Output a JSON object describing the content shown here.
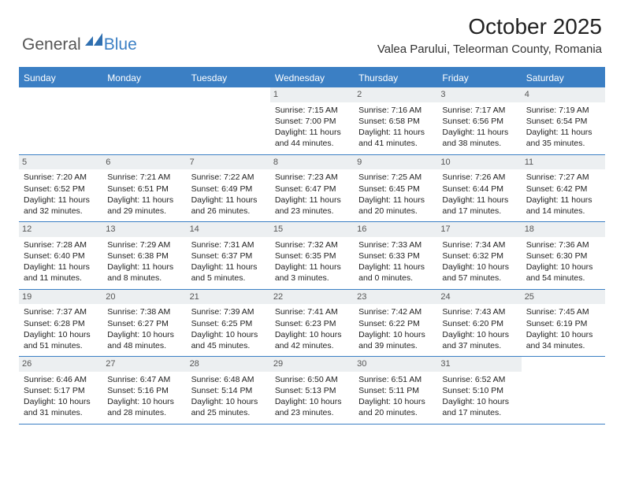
{
  "logo": {
    "part1": "General",
    "part2": "Blue"
  },
  "title": "October 2025",
  "location": "Valea Parului, Teleorman County, Romania",
  "colors": {
    "accent": "#3b7fc4",
    "dowBg": "#3b7fc4",
    "dowText": "#ffffff",
    "daynumBg": "#eceff1",
    "text": "#222222"
  },
  "dayNames": [
    "Sunday",
    "Monday",
    "Tuesday",
    "Wednesday",
    "Thursday",
    "Friday",
    "Saturday"
  ],
  "weeks": [
    [
      {
        "n": "",
        "sunrise": "",
        "sunset": "",
        "daylight": ""
      },
      {
        "n": "",
        "sunrise": "",
        "sunset": "",
        "daylight": ""
      },
      {
        "n": "",
        "sunrise": "",
        "sunset": "",
        "daylight": ""
      },
      {
        "n": "1",
        "sunrise": "7:15 AM",
        "sunset": "7:00 PM",
        "daylight": "11 hours and 44 minutes."
      },
      {
        "n": "2",
        "sunrise": "7:16 AM",
        "sunset": "6:58 PM",
        "daylight": "11 hours and 41 minutes."
      },
      {
        "n": "3",
        "sunrise": "7:17 AM",
        "sunset": "6:56 PM",
        "daylight": "11 hours and 38 minutes."
      },
      {
        "n": "4",
        "sunrise": "7:19 AM",
        "sunset": "6:54 PM",
        "daylight": "11 hours and 35 minutes."
      }
    ],
    [
      {
        "n": "5",
        "sunrise": "7:20 AM",
        "sunset": "6:52 PM",
        "daylight": "11 hours and 32 minutes."
      },
      {
        "n": "6",
        "sunrise": "7:21 AM",
        "sunset": "6:51 PM",
        "daylight": "11 hours and 29 minutes."
      },
      {
        "n": "7",
        "sunrise": "7:22 AM",
        "sunset": "6:49 PM",
        "daylight": "11 hours and 26 minutes."
      },
      {
        "n": "8",
        "sunrise": "7:23 AM",
        "sunset": "6:47 PM",
        "daylight": "11 hours and 23 minutes."
      },
      {
        "n": "9",
        "sunrise": "7:25 AM",
        "sunset": "6:45 PM",
        "daylight": "11 hours and 20 minutes."
      },
      {
        "n": "10",
        "sunrise": "7:26 AM",
        "sunset": "6:44 PM",
        "daylight": "11 hours and 17 minutes."
      },
      {
        "n": "11",
        "sunrise": "7:27 AM",
        "sunset": "6:42 PM",
        "daylight": "11 hours and 14 minutes."
      }
    ],
    [
      {
        "n": "12",
        "sunrise": "7:28 AM",
        "sunset": "6:40 PM",
        "daylight": "11 hours and 11 minutes."
      },
      {
        "n": "13",
        "sunrise": "7:29 AM",
        "sunset": "6:38 PM",
        "daylight": "11 hours and 8 minutes."
      },
      {
        "n": "14",
        "sunrise": "7:31 AM",
        "sunset": "6:37 PM",
        "daylight": "11 hours and 5 minutes."
      },
      {
        "n": "15",
        "sunrise": "7:32 AM",
        "sunset": "6:35 PM",
        "daylight": "11 hours and 3 minutes."
      },
      {
        "n": "16",
        "sunrise": "7:33 AM",
        "sunset": "6:33 PM",
        "daylight": "11 hours and 0 minutes."
      },
      {
        "n": "17",
        "sunrise": "7:34 AM",
        "sunset": "6:32 PM",
        "daylight": "10 hours and 57 minutes."
      },
      {
        "n": "18",
        "sunrise": "7:36 AM",
        "sunset": "6:30 PM",
        "daylight": "10 hours and 54 minutes."
      }
    ],
    [
      {
        "n": "19",
        "sunrise": "7:37 AM",
        "sunset": "6:28 PM",
        "daylight": "10 hours and 51 minutes."
      },
      {
        "n": "20",
        "sunrise": "7:38 AM",
        "sunset": "6:27 PM",
        "daylight": "10 hours and 48 minutes."
      },
      {
        "n": "21",
        "sunrise": "7:39 AM",
        "sunset": "6:25 PM",
        "daylight": "10 hours and 45 minutes."
      },
      {
        "n": "22",
        "sunrise": "7:41 AM",
        "sunset": "6:23 PM",
        "daylight": "10 hours and 42 minutes."
      },
      {
        "n": "23",
        "sunrise": "7:42 AM",
        "sunset": "6:22 PM",
        "daylight": "10 hours and 39 minutes."
      },
      {
        "n": "24",
        "sunrise": "7:43 AM",
        "sunset": "6:20 PM",
        "daylight": "10 hours and 37 minutes."
      },
      {
        "n": "25",
        "sunrise": "7:45 AM",
        "sunset": "6:19 PM",
        "daylight": "10 hours and 34 minutes."
      }
    ],
    [
      {
        "n": "26",
        "sunrise": "6:46 AM",
        "sunset": "5:17 PM",
        "daylight": "10 hours and 31 minutes."
      },
      {
        "n": "27",
        "sunrise": "6:47 AM",
        "sunset": "5:16 PM",
        "daylight": "10 hours and 28 minutes."
      },
      {
        "n": "28",
        "sunrise": "6:48 AM",
        "sunset": "5:14 PM",
        "daylight": "10 hours and 25 minutes."
      },
      {
        "n": "29",
        "sunrise": "6:50 AM",
        "sunset": "5:13 PM",
        "daylight": "10 hours and 23 minutes."
      },
      {
        "n": "30",
        "sunrise": "6:51 AM",
        "sunset": "5:11 PM",
        "daylight": "10 hours and 20 minutes."
      },
      {
        "n": "31",
        "sunrise": "6:52 AM",
        "sunset": "5:10 PM",
        "daylight": "10 hours and 17 minutes."
      },
      {
        "n": "",
        "sunrise": "",
        "sunset": "",
        "daylight": ""
      }
    ]
  ],
  "labels": {
    "sunrise": "Sunrise: ",
    "sunset": "Sunset: ",
    "daylight": "Daylight: "
  }
}
